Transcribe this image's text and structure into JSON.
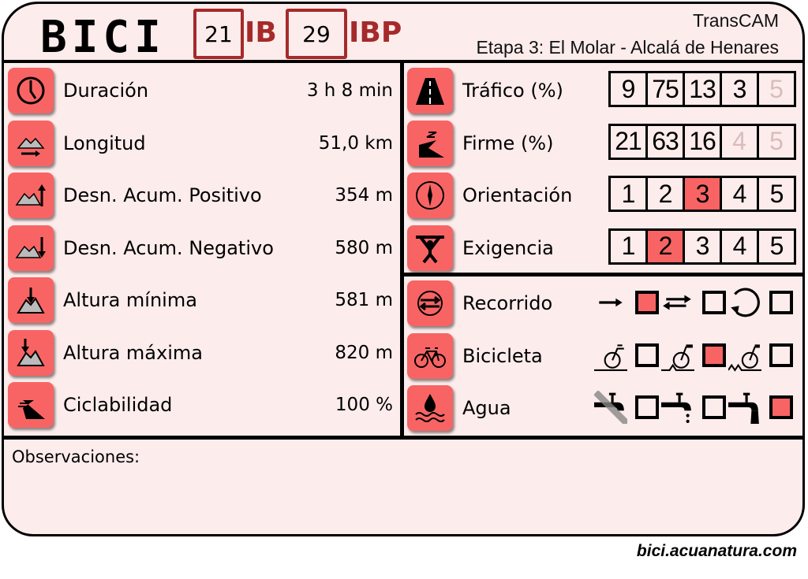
{
  "header": {
    "title": "BICI",
    "ib_value": "21",
    "ib_label": "IB",
    "ibp_value": "29",
    "ibp_label": "IBP",
    "org": "TransCAM",
    "stage": "Etapa 3: El Molar - Alcalá de Henares"
  },
  "stats": [
    {
      "icon": "clock-icon",
      "label": "Duración",
      "value": "3 h 8 min"
    },
    {
      "icon": "distance-icon",
      "label": "Longitud",
      "value": "51,0 km"
    },
    {
      "icon": "ascent-icon",
      "label": "Desn. Acum. Positivo",
      "value": "354 m"
    },
    {
      "icon": "descent-icon",
      "label": "Desn. Acum. Negativo",
      "value": "580 m"
    },
    {
      "icon": "min-altitude-icon",
      "label": "Altura mínima",
      "value": "581 m"
    },
    {
      "icon": "max-altitude-icon",
      "label": "Altura máxima",
      "value": "820 m"
    },
    {
      "icon": "cyclability-icon",
      "label": "Ciclabilidad",
      "value": "100 %"
    }
  ],
  "scales": [
    {
      "icon": "road-icon",
      "label": "Tráfico (%)",
      "cells": [
        "9",
        "75",
        "13",
        "3",
        ""
      ]
    },
    {
      "icon": "surface-icon",
      "label": "Firme (%)",
      "cells": [
        "21",
        "63",
        "16",
        "",
        ""
      ]
    },
    {
      "icon": "compass-icon",
      "label": "Orientación",
      "cells": [
        "1",
        "2",
        "3",
        "4",
        "5"
      ],
      "selected": 3
    },
    {
      "icon": "weightlifter-icon",
      "label": "Exigencia",
      "cells": [
        "1",
        "2",
        "3",
        "4",
        "5"
      ],
      "selected": 2
    }
  ],
  "options": [
    {
      "icon": "route-icon",
      "label": "Recorrido",
      "choices": [
        "one-way-icon",
        "round-trip-icon",
        "loop-icon"
      ],
      "selected": 0
    },
    {
      "icon": "bicycle-icon",
      "label": "Bicicleta",
      "choices": [
        "road-bike-icon",
        "trekking-bike-icon",
        "mtb-icon"
      ],
      "selected": 1
    },
    {
      "icon": "water-drop-icon",
      "label": "Agua",
      "choices": [
        "no-water-tap-icon",
        "dripping-tap-icon",
        "running-tap-icon"
      ],
      "selected": 2
    }
  ],
  "colors": {
    "accent": "#f86464",
    "brand": "#a52a2a",
    "background": "#fdecec"
  },
  "observations_label": "Observaciones:",
  "footer": "bici.acuanatura.com"
}
